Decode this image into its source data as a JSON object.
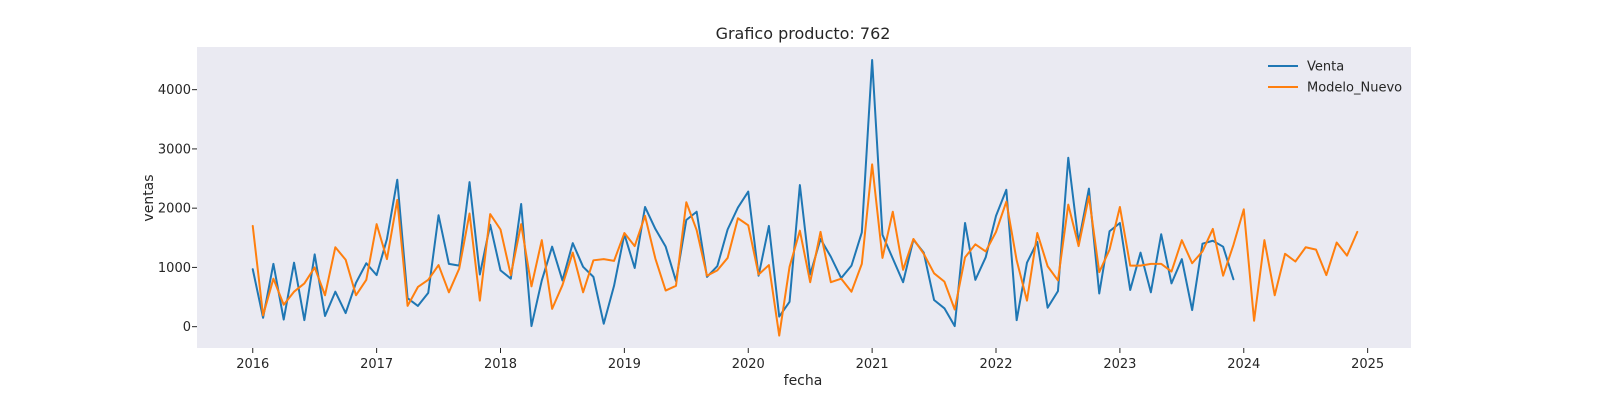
{
  "chart_data": {
    "type": "line",
    "title": "Grafico producto: 762",
    "xlabel": "fecha",
    "ylabel": "ventas",
    "xlim": [
      2015.55,
      2025.35
    ],
    "ylim": [
      -360,
      4720
    ],
    "x_ticks": [
      {
        "value": 2016,
        "label": "2016"
      },
      {
        "value": 2017,
        "label": "2017"
      },
      {
        "value": 2018,
        "label": "2018"
      },
      {
        "value": 2019,
        "label": "2019"
      },
      {
        "value": 2020,
        "label": "2020"
      },
      {
        "value": 2021,
        "label": "2021"
      },
      {
        "value": 2022,
        "label": "2022"
      },
      {
        "value": 2023,
        "label": "2023"
      },
      {
        "value": 2024,
        "label": "2024"
      },
      {
        "value": 2025,
        "label": "2025"
      }
    ],
    "y_ticks": [
      {
        "value": 0,
        "label": "0"
      },
      {
        "value": 1000,
        "label": "1000"
      },
      {
        "value": 2000,
        "label": "2000"
      },
      {
        "value": 3000,
        "label": "3000"
      },
      {
        "value": 4000,
        "label": "4000"
      }
    ],
    "grid": false,
    "legend_position": "top-right",
    "background_color": "#eaeaf2",
    "x_start": 2016,
    "x_step_months": 1,
    "series": [
      {
        "name": "Venta",
        "color": "#1f77b4",
        "values": [
          970,
          150,
          1060,
          120,
          1080,
          110,
          1220,
          180,
          590,
          230,
          740,
          1070,
          870,
          1480,
          2480,
          480,
          350,
          570,
          1880,
          1060,
          1030,
          2440,
          880,
          1720,
          950,
          810,
          2070,
          10,
          780,
          1350,
          780,
          1410,
          1010,
          840,
          50,
          690,
          1560,
          990,
          2020,
          1650,
          1350,
          770,
          1800,
          1940,
          840,
          1020,
          1640,
          2010,
          2280,
          860,
          1700,
          170,
          420,
          2390,
          880,
          1480,
          1180,
          820,
          1030,
          1590,
          4500,
          1550,
          1150,
          750,
          1470,
          1250,
          450,
          310,
          10,
          1750,
          790,
          1170,
          1870,
          2310,
          110,
          1080,
          1430,
          320,
          600,
          2850,
          1420,
          2330,
          560,
          1610,
          1750,
          620,
          1250,
          580,
          1560,
          730,
          1140,
          280,
          1400,
          1450,
          1350,
          800
        ],
        "x_end": 2023.9167
      },
      {
        "name": "Modelo_Nuevo",
        "color": "#ff7f0e",
        "values": [
          1700,
          190,
          810,
          370,
          590,
          730,
          1000,
          530,
          1340,
          1130,
          530,
          790,
          1730,
          1140,
          2140,
          350,
          670,
          790,
          1040,
          580,
          980,
          1910,
          440,
          1900,
          1640,
          870,
          1730,
          680,
          1460,
          300,
          700,
          1250,
          580,
          1120,
          1140,
          1110,
          1580,
          1360,
          1870,
          1150,
          610,
          690,
          2100,
          1630,
          860,
          950,
          1160,
          1830,
          1710,
          880,
          1040,
          -150,
          1010,
          1620,
          750,
          1600,
          750,
          810,
          590,
          1060,
          2740,
          1160,
          1940,
          960,
          1480,
          1230,
          900,
          760,
          290,
          1170,
          1390,
          1270,
          1600,
          2110,
          1120,
          440,
          1580,
          1020,
          780,
          2060,
          1360,
          2200,
          920,
          1300,
          2020,
          1030,
          1030,
          1060,
          1060,
          930,
          1460,
          1070,
          1270,
          1650,
          860,
          1380,
          1980,
          100,
          1460,
          530,
          1230,
          1100,
          1340,
          1300,
          870,
          1420,
          1200,
          1600
        ]
      }
    ]
  }
}
